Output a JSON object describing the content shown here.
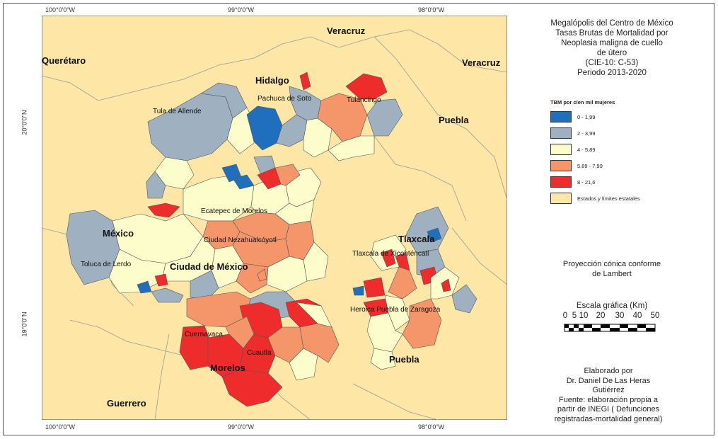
{
  "coordinates": {
    "top": [
      "100°0'0\"W",
      "99°0'0\"W",
      "98°0'0\"W"
    ],
    "bottom": [
      "100°0'0\"W",
      "99°0'0\"W",
      "98°0'0\"W"
    ],
    "lat": [
      "20°0'0\"N",
      "19°0'0\"N"
    ]
  },
  "title": {
    "lines": [
      "Megalópolis del Centro de México",
      "Tasas Brutas de Mortalidad por",
      "Neoplasia maligna de cuello",
      "de útero",
      "(CIE-10: C-53)",
      "Periodo 2013-2020"
    ]
  },
  "legend": {
    "heading": "TBM por cien mil mujeres",
    "items": [
      {
        "label": "0 - 1,99",
        "color": "#1f6fbd"
      },
      {
        "label": "2 - 3,99",
        "color": "#9fb0c0"
      },
      {
        "label": "4 - 5,89",
        "color": "#fdfccb"
      },
      {
        "label": "5,89 - 7,99",
        "color": "#f4956a"
      },
      {
        "label": "8 - 21,6",
        "color": "#ef2c2c"
      },
      {
        "label": "Estados y límites estatales",
        "color": "#fde6a6"
      }
    ]
  },
  "projection": {
    "lines": [
      "Proyección cónica conforme",
      "de Lambert"
    ]
  },
  "scale": {
    "title": "Escala gráfica (Km)",
    "ticks": [
      "0",
      "5",
      "10",
      "20",
      "30",
      "40",
      "50"
    ]
  },
  "credits": {
    "lines": [
      "Elaborado por",
      "Dr. Daniel De Las Heras",
      "Gutiérrez",
      "Fuente: elaboración propia a",
      "partir de INEGI ( Defunciones",
      "registradas-mortalidad general)"
    ]
  },
  "map": {
    "states": [
      "Querétaro",
      "Hidalgo",
      "Veracruz",
      "Veracruz",
      "Puebla",
      "México",
      "Ciudad de México",
      "Tlaxcala",
      "Puebla",
      "Morelos",
      "Guerrero"
    ],
    "cities": [
      "Tula de Allende",
      "Pachuca de Soto",
      "Tulancingo",
      "Ecatepec de Morelos",
      "Ciudad Nezahualcóyotl",
      "Toluca de Lerdo",
      "Tlaxcala de Xicohténcatl",
      "Heroica Puebla de Zaragoza",
      "Cuernavaca",
      "Cuautla"
    ]
  }
}
